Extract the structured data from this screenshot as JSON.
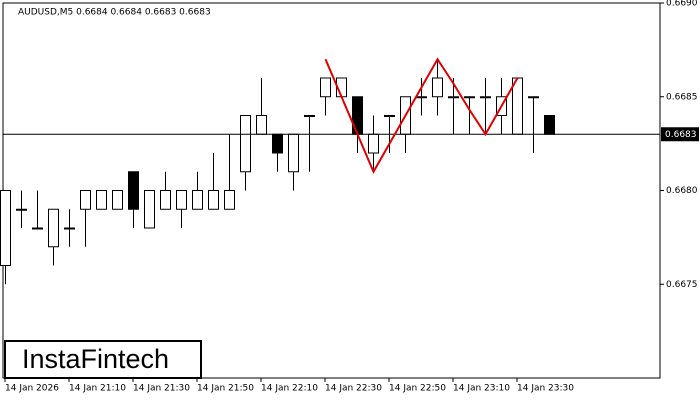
{
  "chart_data": {
    "type": "candlestick",
    "header": "AUDUSD,M5  0.6684 0.6684 0.6683 0.6683",
    "logo": "InstaFintech",
    "categories": [
      "14 Jan 2026",
      null,
      null,
      null,
      "14 Jan 21:10",
      null,
      null,
      null,
      "14 Jan 21:30",
      null,
      null,
      null,
      "14 Jan 21:50",
      null,
      null,
      null,
      "14 Jan 22:10",
      null,
      null,
      null,
      "14 Jan 22:30",
      null,
      null,
      null,
      "14 Jan 22:50",
      null,
      null,
      null,
      "14 Jan 23:10",
      null,
      null,
      null,
      "14 Jan 23:30",
      null,
      null
    ],
    "open": [
      0.6676,
      0.6679,
      0.6678,
      0.6677,
      0.6678,
      0.6679,
      0.6679,
      0.6679,
      0.6681,
      0.6678,
      0.6679,
      0.6679,
      0.6679,
      0.6679,
      0.6679,
      0.6681,
      0.6683,
      0.6683,
      0.6681,
      0.6684,
      0.6685,
      0.6685,
      0.6685,
      0.6682,
      0.6684,
      0.6683,
      0.6685,
      0.6685,
      0.6685,
      0.6685,
      0.6685,
      0.6684,
      0.6683,
      0.6685,
      0.6684
    ],
    "high": [
      0.668,
      0.668,
      0.668,
      0.6679,
      0.6679,
      0.668,
      0.668,
      0.668,
      0.6681,
      0.668,
      0.6681,
      0.668,
      0.6681,
      0.6682,
      0.6683,
      0.6684,
      0.6686,
      0.6683,
      0.6683,
      0.6684,
      0.6686,
      0.6686,
      0.6685,
      0.6684,
      0.6684,
      0.6685,
      0.6686,
      0.6687,
      0.6686,
      0.6685,
      0.6686,
      0.6686,
      0.6686,
      0.6685,
      0.6684
    ],
    "low": [
      0.6675,
      0.6678,
      0.6678,
      0.6676,
      0.6677,
      0.6677,
      0.6679,
      0.6679,
      0.6678,
      0.6678,
      0.6679,
      0.6678,
      0.6679,
      0.6679,
      0.6679,
      0.668,
      0.6683,
      0.6681,
      0.668,
      0.6681,
      0.6684,
      0.6685,
      0.6682,
      0.6681,
      0.6682,
      0.6682,
      0.6684,
      0.6684,
      0.6683,
      0.6683,
      0.6683,
      0.6683,
      0.6683,
      0.6682,
      0.6683
    ],
    "close": [
      0.668,
      0.6679,
      0.6678,
      0.6679,
      0.6678,
      0.668,
      0.668,
      0.668,
      0.6679,
      0.668,
      0.668,
      0.668,
      0.668,
      0.668,
      0.668,
      0.6684,
      0.6684,
      0.6682,
      0.6683,
      0.6684,
      0.6686,
      0.6686,
      0.6683,
      0.6683,
      0.6684,
      0.6685,
      0.6685,
      0.6686,
      0.6685,
      0.6685,
      0.6685,
      0.6685,
      0.6686,
      0.6685,
      0.6683
    ],
    "bull_color": "#ffffff",
    "bear_color": "#000000",
    "pattern": {
      "color": "#e00000",
      "values": [
        null,
        null,
        null,
        null,
        null,
        null,
        null,
        null,
        null,
        null,
        null,
        null,
        null,
        null,
        null,
        null,
        null,
        null,
        null,
        null,
        0.6687,
        0.6685,
        0.6683,
        0.6681,
        0.66825,
        0.6684,
        0.66855,
        0.6687,
        0.66857,
        0.66843,
        0.6683,
        0.66845,
        0.6686,
        null,
        null
      ]
    },
    "last_price": 0.6683,
    "ylim": [
      0.667,
      0.669
    ],
    "yticks": [
      0.6675,
      {
        "value": 0.668,
        "label": "0.6680"
      },
      0.6685,
      {
        "value": 0.669,
        "label": "0.6690"
      }
    ]
  }
}
